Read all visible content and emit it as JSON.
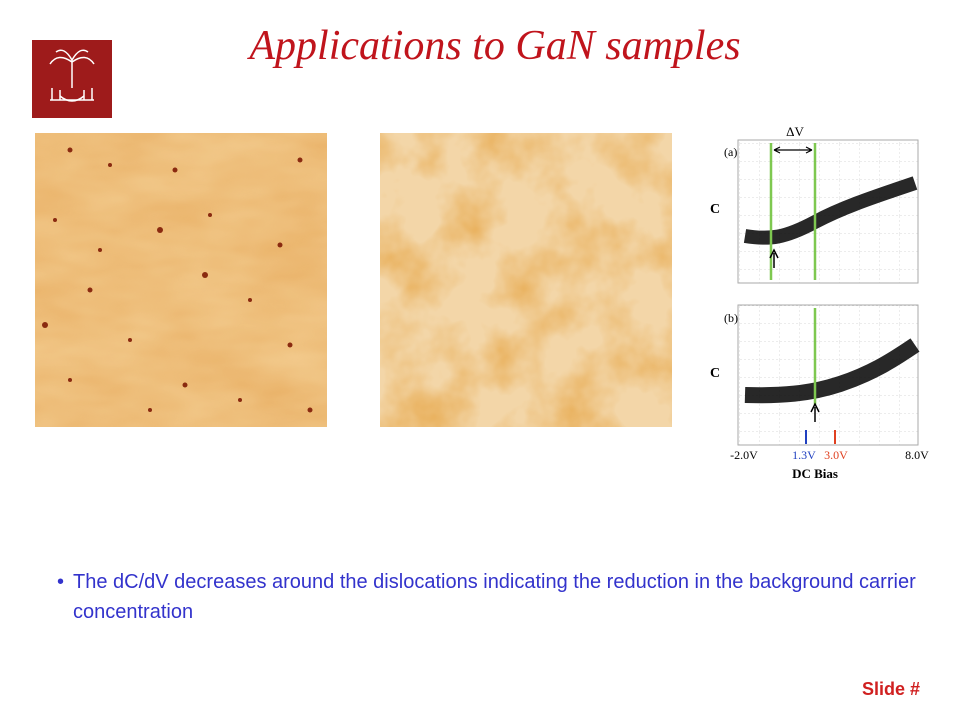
{
  "header": {
    "title": "Applications to GaN samples"
  },
  "figure": {
    "panel_a_label": "(a)",
    "panel_b_label": "(b)",
    "delta_label": "ΔV",
    "y_label_a": "C",
    "y_label_b": "C",
    "x_tick_labels": [
      "-2.0V",
      "1.3V",
      "3.0V",
      "8.0V"
    ],
    "x_label": "DC Bias"
  },
  "bullets": [
    "The dC/dV decreases around the dislocations indicating the reduction in the background carrier concentration"
  ],
  "footer": {
    "slide_number": "Slide #"
  }
}
